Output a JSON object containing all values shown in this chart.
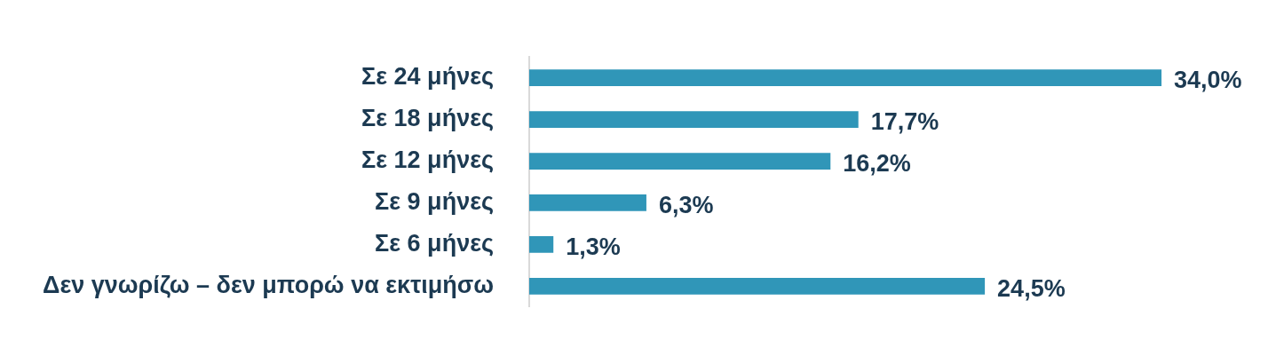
{
  "chart_data": {
    "type": "bar",
    "orientation": "horizontal",
    "categories": [
      "Σε 24 μήνες",
      "Σε 18 μήνες",
      "Σε 12 μήνες",
      "Σε 9 μήνες",
      "Σε 6 μήνες",
      "Δεν γνωρίζω – δεν μπορώ να εκτιμήσω"
    ],
    "values": [
      34.0,
      17.7,
      16.2,
      6.3,
      1.3,
      24.5
    ],
    "value_labels": [
      "34,0%",
      "17,7%",
      "16,2%",
      "6,3%",
      "1,3%",
      "24,5%"
    ],
    "color": "#3096b8"
  }
}
